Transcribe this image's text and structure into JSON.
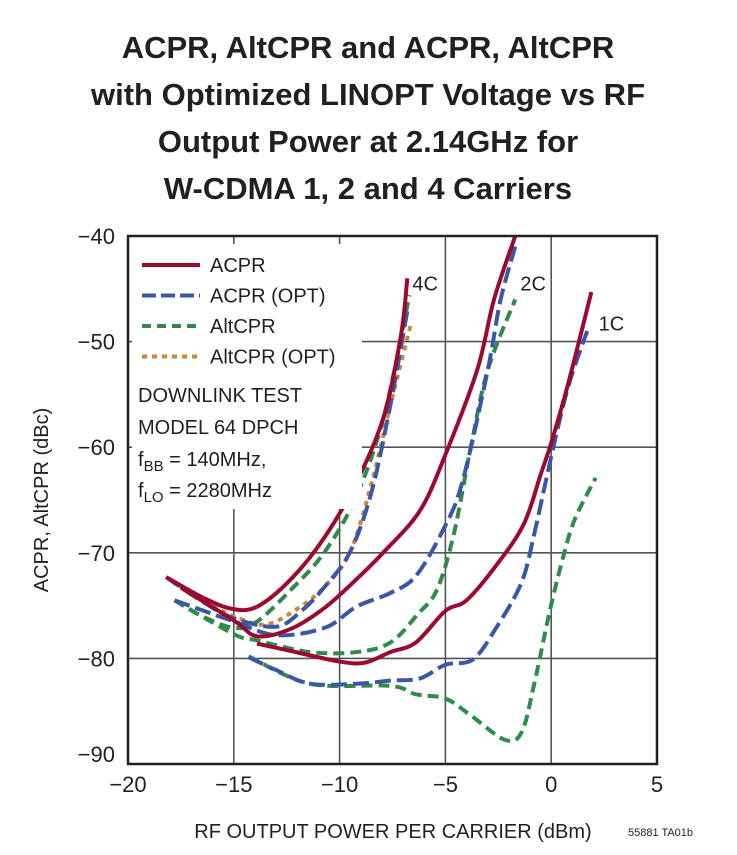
{
  "chart_data": {
    "type": "line",
    "title": [
      "ACPR, AltCPR and ACPR, AltCPR",
      "with Optimized LINOPT Voltage vs RF",
      "Output Power at 2.14GHz for",
      "W-CDMA 1, 2 and 4 Carriers"
    ],
    "xlabel": "RF OUTPUT POWER PER CARRIER (dBm)",
    "ylabel": "ACPR, AltCPR (dBc)",
    "xlim": [
      -20,
      5
    ],
    "ylim": [
      -90,
      -40
    ],
    "xticks": [
      -20,
      -15,
      -10,
      -5,
      0,
      5
    ],
    "xtick_labels": [
      "−20",
      "−15",
      "−10",
      "−5",
      "0",
      "5"
    ],
    "yticks": [
      -40,
      -50,
      -60,
      -70,
      -80,
      -90
    ],
    "ytick_labels": [
      "−40",
      "−50",
      "−60",
      "−70",
      "−80",
      "−90"
    ],
    "grid": true,
    "legend_placement": "top-left",
    "legend": [
      {
        "name": "ACPR",
        "color": "#9b0a2e",
        "style": "solid"
      },
      {
        "name": "ACPR (OPT)",
        "color": "#3a57a7",
        "style": "long-dash"
      },
      {
        "name": "AltCPR",
        "color": "#2e8b4a",
        "style": "dash"
      },
      {
        "name": "AltCPR (OPT)",
        "color": "#d2843a",
        "style": "dot"
      }
    ],
    "annotation": [
      "DOWNLINK TEST",
      "MODEL 64 DPCH"
    ],
    "annotation_fbb": {
      "sym": "f",
      "sub": "BB",
      "rest": " = 140MHz,"
    },
    "annotation_flo": {
      "sym": "f",
      "sub": "LO",
      "rest": " = 2280MHz"
    },
    "curve_labels": [
      {
        "text": "4C",
        "x": -6.7,
        "y": -44.5
      },
      {
        "text": "2C",
        "x": -1.6,
        "y": -44.5
      },
      {
        "text": "1C",
        "x": 2.1,
        "y": -48.3
      }
    ],
    "footnote": "55881 TA01b",
    "series": [
      {
        "name": "ACPR",
        "carriers": "4C",
        "x": [
          -18.2,
          -16.5,
          -15.1,
          -13.9,
          -12.3,
          -10.7,
          -9.2,
          -7.9,
          -7.1,
          -6.8
        ],
        "y": [
          -72.3,
          -74.2,
          -75.3,
          -75.1,
          -72.5,
          -68.5,
          -63.3,
          -57,
          -49.4,
          -44
        ]
      },
      {
        "name": "ACPR (OPT)",
        "carriers": "4C",
        "x": [
          -18.2,
          -16.5,
          -15,
          -13,
          -11.8,
          -10.7,
          -9.5,
          -8.5,
          -7.6,
          -6.8
        ],
        "y": [
          -72.3,
          -74.6,
          -76.2,
          -77,
          -75.5,
          -73.2,
          -69.9,
          -64.3,
          -56,
          -47.1
        ]
      },
      {
        "name": "AltCPR",
        "carriers": "4C",
        "x": [
          -17.8,
          -16.5,
          -15,
          -13.9,
          -12.3,
          -10.7,
          -9.2,
          -7.9,
          -6.7
        ],
        "y": [
          -74.5,
          -76,
          -77.1,
          -76.5,
          -73.5,
          -69.9,
          -64.6,
          -57,
          -45.6
        ]
      },
      {
        "name": "AltCPR (OPT)",
        "carriers": "4C",
        "x": [
          -18,
          -16.5,
          -15,
          -13.5,
          -12,
          -10.7,
          -9.5,
          -8.5,
          -7.6,
          -6.6
        ],
        "y": [
          -72.5,
          -74.5,
          -76,
          -76.8,
          -75.3,
          -73.2,
          -69.9,
          -63.5,
          -56,
          -48.1
        ]
      },
      {
        "name": "ACPR",
        "carriers": "2C",
        "x": [
          -17.5,
          -15,
          -13.9,
          -12.3,
          -10.7,
          -9.2,
          -7.9,
          -6.2,
          -5,
          -3.5,
          -2.7,
          -1.7
        ],
        "y": [
          -73.3,
          -76.4,
          -77.9,
          -77.2,
          -75.2,
          -72.5,
          -69.9,
          -66,
          -60.7,
          -52.7,
          -46,
          -40
        ]
      },
      {
        "name": "ACPR (OPT)",
        "carriers": "2C",
        "x": [
          -17.8,
          -15,
          -13,
          -10.7,
          -9.2,
          -7.6,
          -6.4,
          -5.1,
          -4.2,
          -3,
          -2.4,
          -1.7
        ],
        "y": [
          -74.5,
          -76.5,
          -77.8,
          -77.1,
          -75.1,
          -73.8,
          -72.2,
          -67.8,
          -63.3,
          -52.7,
          -46.1,
          -41
        ]
      },
      {
        "name": "AltCPR",
        "carriers": "2C",
        "x": [
          -17.8,
          -15,
          -13.9,
          -11.4,
          -9.2,
          -7.6,
          -6.3,
          -5.4,
          -4.6,
          -3.8,
          -3,
          -1.7
        ],
        "y": [
          -74.5,
          -77.7,
          -78.3,
          -79.4,
          -79.4,
          -78.5,
          -75.8,
          -73.5,
          -68.2,
          -60,
          -52.7,
          -46
        ]
      },
      {
        "name": "ACPR",
        "carriers": "1C",
        "x": [
          -13.9,
          -12.3,
          -10,
          -8.8,
          -7.6,
          -6.4,
          -5,
          -4,
          -2.6,
          -1.3,
          -0.5,
          0,
          0.8,
          1.9
        ],
        "y": [
          -78.6,
          -79.3,
          -80.3,
          -80.4,
          -79.4,
          -78.5,
          -75.5,
          -74.5,
          -71.2,
          -67.3,
          -62.6,
          -59.6,
          -54,
          -45.3
        ]
      },
      {
        "name": "ACPR (OPT)",
        "carriers": "1C",
        "x": [
          -14.3,
          -13,
          -11.4,
          -9.2,
          -7.6,
          -6.2,
          -5,
          -3.7,
          -2.6,
          -1.4,
          -0.8,
          0,
          0.8,
          1.7
        ],
        "y": [
          -79.9,
          -81.1,
          -82.4,
          -82.4,
          -82.1,
          -81.9,
          -80.6,
          -80.1,
          -77.1,
          -72.8,
          -68.2,
          -60.9,
          -54.3,
          -49
        ]
      },
      {
        "name": "AltCPR",
        "carriers": "1C",
        "x": [
          -14.3,
          -11.4,
          -7.6,
          -6.4,
          -5,
          -3.8,
          -2.2,
          -1.4,
          -0.8,
          -0.1,
          0.5,
          1.1,
          2.1
        ],
        "y": [
          -79.8,
          -82.4,
          -82.6,
          -83.4,
          -83.8,
          -85.4,
          -87.7,
          -87,
          -82.4,
          -75.8,
          -70.9,
          -66.9,
          -62.9
        ]
      }
    ]
  }
}
